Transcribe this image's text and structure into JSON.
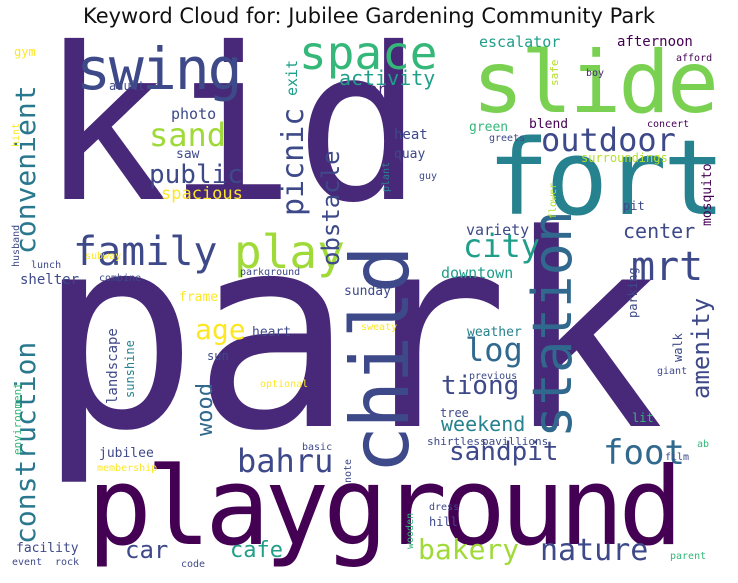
{
  "title": "Keyword Cloud for: Jubilee Gardening Community Park",
  "palette": {
    "dark_purple": "#440154",
    "purple": "#482878",
    "indigo": "#3e4989",
    "blue": "#31688e",
    "teal": "#26828e",
    "green_teal": "#1f9e89",
    "green": "#35b779",
    "light_green": "#6ece58",
    "lime": "#b5de2b",
    "yellow": "#fde725"
  },
  "words": [
    {
      "text": "kid",
      "color": "#482878"
    },
    {
      "text": "park",
      "color": "#482878"
    },
    {
      "text": "playground",
      "color": "#440154"
    },
    {
      "text": "fort",
      "color": "#26828e"
    },
    {
      "text": "slide",
      "color": "#7ad151"
    },
    {
      "text": "child",
      "color": "#3e4989"
    },
    {
      "text": "swing",
      "color": "#3e4989"
    },
    {
      "text": "space",
      "color": "#35b779"
    },
    {
      "text": "station",
      "color": "#31688e"
    },
    {
      "text": "family",
      "color": "#3e4989"
    },
    {
      "text": "play",
      "color": "#a0da39"
    },
    {
      "text": "outdoor",
      "color": "#3e4989"
    },
    {
      "text": "mrt",
      "color": "#3e4989"
    },
    {
      "text": "sand",
      "color": "#a0da39"
    },
    {
      "text": "foot",
      "color": "#31688e"
    },
    {
      "text": "city",
      "color": "#1f9e89"
    },
    {
      "text": "construction",
      "color": "#2a788e"
    },
    {
      "text": "convenient",
      "color": "#2a788e"
    },
    {
      "text": "bahru",
      "color": "#3e4989"
    },
    {
      "text": "nature",
      "color": "#3e4989"
    },
    {
      "text": "bakery",
      "color": "#a0da39"
    },
    {
      "text": "log",
      "color": "#31688e"
    },
    {
      "text": "sandpit",
      "color": "#3e4989"
    },
    {
      "text": "picnic",
      "color": "#3e4989"
    },
    {
      "text": "public",
      "color": "#3e4989"
    },
    {
      "text": "obstacle",
      "color": "#3e4989"
    },
    {
      "text": "activity",
      "color": "#1f9e89"
    },
    {
      "text": "amenity",
      "color": "#3e4989"
    },
    {
      "text": "center",
      "color": "#3e4989"
    },
    {
      "text": "tiong",
      "color": "#3e4989"
    },
    {
      "text": "age",
      "color": "#fde725"
    },
    {
      "text": "car",
      "color": "#3e4989"
    },
    {
      "text": "cafe",
      "color": "#1f9e89"
    },
    {
      "text": "weekend",
      "color": "#26828e"
    },
    {
      "text": "wood",
      "color": "#31688e"
    },
    {
      "text": "spacious",
      "color": "#fde725"
    },
    {
      "text": "variety",
      "color": "#3e4989"
    },
    {
      "text": "downtown",
      "color": "#1f9e89"
    },
    {
      "text": "escalator",
      "color": "#1f9e89"
    },
    {
      "text": "afternoon",
      "color": "#440154"
    },
    {
      "text": "scenery",
      "color": "#482878"
    },
    {
      "text": "exit",
      "color": "#1f9e89"
    },
    {
      "text": "photo",
      "color": "#3e4989"
    },
    {
      "text": "saw",
      "color": "#3e4989"
    },
    {
      "text": "adult",
      "color": "#3e4989"
    },
    {
      "text": "gym",
      "color": "#fde725"
    },
    {
      "text": "heat",
      "color": "#3e4989"
    },
    {
      "text": "quay",
      "color": "#3e4989"
    },
    {
      "text": "green",
      "color": "#35b779"
    },
    {
      "text": "blend",
      "color": "#440154"
    },
    {
      "text": "surroundings",
      "color": "#b5de2b"
    },
    {
      "text": "safe",
      "color": "#b5de2b"
    },
    {
      "text": "boy",
      "color": "#482878"
    },
    {
      "text": "afford",
      "color": "#440154"
    },
    {
      "text": "concert",
      "color": "#440154"
    },
    {
      "text": "greets",
      "color": "#3e4989"
    },
    {
      "text": "mosquito",
      "color": "#440154"
    },
    {
      "text": "pit",
      "color": "#3e4989"
    },
    {
      "text": "flower",
      "color": "#b5de2b"
    },
    {
      "text": "plant",
      "color": "#26828e"
    },
    {
      "text": "guy",
      "color": "#3e4989"
    },
    {
      "text": "hint",
      "color": "#fde725"
    },
    {
      "text": "husband",
      "color": "#3e4989"
    },
    {
      "text": "subway",
      "color": "#fde725"
    },
    {
      "text": "lunch",
      "color": "#3e4989"
    },
    {
      "text": "combine",
      "color": "#3e4989"
    },
    {
      "text": "parkground",
      "color": "#3e4989"
    },
    {
      "text": "shelter",
      "color": "#3e4989"
    },
    {
      "text": "frame",
      "color": "#fde725"
    },
    {
      "text": "sunday",
      "color": "#3e4989"
    },
    {
      "text": "parking",
      "color": "#3e4989"
    },
    {
      "text": "landscape",
      "color": "#3e4989"
    },
    {
      "text": "sunshine",
      "color": "#26828e"
    },
    {
      "text": "heart",
      "color": "#3e4989"
    },
    {
      "text": "sun",
      "color": "#3e4989"
    },
    {
      "text": "sweaty",
      "color": "#fde725"
    },
    {
      "text": "weather",
      "color": "#26828e"
    },
    {
      "text": "walk",
      "color": "#3e4989"
    },
    {
      "text": "optional",
      "color": "#fde725"
    },
    {
      "text": "previous",
      "color": "#3e4989"
    },
    {
      "text": "giant",
      "color": "#3e4989"
    },
    {
      "text": "environment",
      "color": "#35b779"
    },
    {
      "text": "tree",
      "color": "#3e4989"
    },
    {
      "text": "lit",
      "color": "#35b779"
    },
    {
      "text": "basic",
      "color": "#3e4989"
    },
    {
      "text": "note",
      "color": "#3e4989"
    },
    {
      "text": "jubilee",
      "color": "#3e4989"
    },
    {
      "text": "membership",
      "color": "#fde725"
    },
    {
      "text": "shirtless",
      "color": "#3e4989"
    },
    {
      "text": "pavillions",
      "color": "#3e4989"
    },
    {
      "text": "ab",
      "color": "#35b779"
    },
    {
      "text": "film",
      "color": "#3e4989"
    },
    {
      "text": "dress",
      "color": "#3e4989"
    },
    {
      "text": "hill",
      "color": "#3e4989"
    },
    {
      "text": "wooden",
      "color": "#35b779"
    },
    {
      "text": "facility",
      "color": "#3e4989"
    },
    {
      "text": "event",
      "color": "#3e4989"
    },
    {
      "text": "rock",
      "color": "#3e4989"
    },
    {
      "text": "code",
      "color": "#3e4989"
    },
    {
      "text": "parent",
      "color": "#35b779"
    }
  ]
}
